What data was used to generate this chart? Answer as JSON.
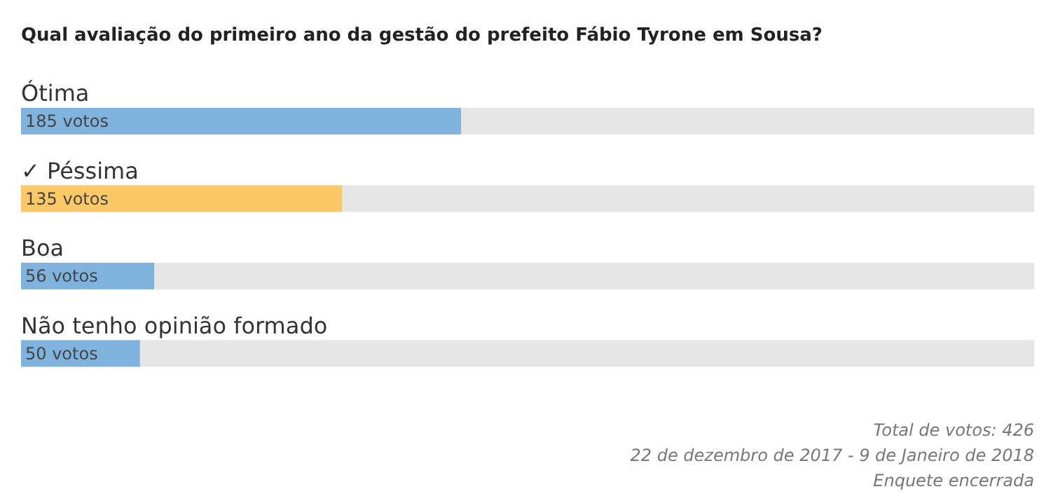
{
  "chart_data": {
    "type": "bar",
    "orientation": "horizontal",
    "title": "Qual avaliação do primeiro ano da gestão do prefeito Fábio Tyrone em Sousa?",
    "categories": [
      "Ótima",
      "✓ Péssima",
      "Boa",
      "Não tenho opinião formado"
    ],
    "values": [
      185,
      135,
      56,
      50
    ],
    "value_labels": [
      "185 votos",
      "135 votos",
      "56 votos",
      "50 votos"
    ],
    "colors": [
      "#7fb2dd",
      "#fcc868",
      "#7fb2dd",
      "#7fb2dd"
    ],
    "xlim": [
      0,
      426
    ],
    "annotations": [
      "Total de votos: 426",
      "22 de dezembro de 2017 - 9 de Janeiro de 2018",
      "Enquete encerrada"
    ]
  }
}
